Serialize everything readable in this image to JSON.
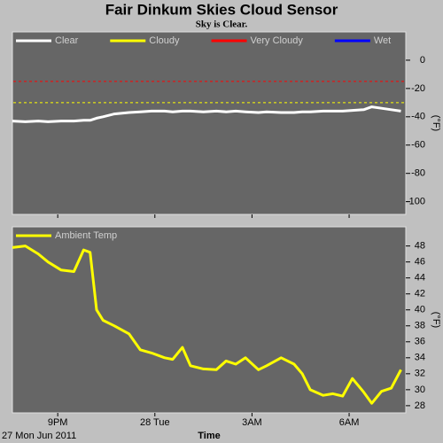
{
  "chart_data": [
    {
      "type": "line",
      "title": "Fair Dinkum Skies Cloud Sensor",
      "subtitle": "Sky is Clear.",
      "ylabel": "(°F)",
      "x": [
        19.6,
        20.0,
        20.4,
        20.7,
        21.1,
        21.5,
        21.8,
        22.0,
        22.2,
        22.4,
        22.75,
        23.2,
        23.55,
        23.9,
        24.3,
        24.55,
        24.85,
        25.1,
        25.5,
        25.9,
        26.2,
        26.5,
        26.8,
        27.2,
        27.45,
        27.9,
        28.3,
        28.55,
        28.8,
        29.2,
        29.5,
        29.8,
        30.1,
        30.45,
        30.7,
        31.0,
        31.3,
        31.6
      ],
      "series": [
        {
          "name": "Clear",
          "color": "#ffffff",
          "values": [
            -43,
            -43.5,
            -43,
            -43.5,
            -43,
            -43,
            -42.5,
            -42.5,
            -41,
            -40,
            -38,
            -37,
            -36.5,
            -36,
            -36,
            -36.5,
            -36,
            -36,
            -36.5,
            -36,
            -36.5,
            -36,
            -36.5,
            -37,
            -36.5,
            -37,
            -37,
            -36.5,
            -36.5,
            -36,
            -36,
            -36,
            -35.5,
            -35,
            -33,
            -34,
            -35,
            -36
          ]
        }
      ],
      "thresholds": [
        {
          "name": "Cloudy",
          "color": "#ffff00",
          "value": -30
        },
        {
          "name": "Very Cloudy",
          "color": "#ff0000",
          "value": -15
        },
        {
          "name": "Wet",
          "color": "#0000ff"
        }
      ],
      "xlim": [
        19.6,
        31.75
      ],
      "xticks": [
        {
          "value": 21,
          "label": "9PM"
        },
        {
          "value": 24,
          "label": "28 Tue"
        },
        {
          "value": 27,
          "label": "3AM"
        },
        {
          "value": 30,
          "label": "6AM"
        }
      ],
      "ylim": [
        -109,
        20
      ],
      "yticks": [
        0,
        -20,
        -40,
        -60,
        -80,
        -100
      ]
    },
    {
      "type": "line",
      "ylabel": "(°F)",
      "xlabel": "Time",
      "x_start_label": "27 Mon Jun 2011",
      "x": [
        19.6,
        20.0,
        20.4,
        20.7,
        21.1,
        21.5,
        21.8,
        22.0,
        22.2,
        22.4,
        22.75,
        23.2,
        23.55,
        23.9,
        24.3,
        24.55,
        24.85,
        25.1,
        25.5,
        25.9,
        26.2,
        26.5,
        26.8,
        27.2,
        27.45,
        27.9,
        28.3,
        28.55,
        28.8,
        29.2,
        29.5,
        29.8,
        30.1,
        30.45,
        30.7,
        31.0,
        31.3,
        31.6
      ],
      "series": [
        {
          "name": "Ambient Temp",
          "color": "#ffff00",
          "values": [
            47.8,
            48,
            47,
            46,
            45,
            44.8,
            47.5,
            47.2,
            40,
            38.7,
            38,
            37,
            35,
            34.6,
            34,
            33.8,
            35.3,
            33,
            32.6,
            32.5,
            33.6,
            33.2,
            34,
            32.5,
            33,
            34,
            33.2,
            32,
            30,
            29.3,
            29.5,
            29.2,
            31.4,
            29.7,
            28.3,
            29.8,
            30.2,
            32.5
          ]
        }
      ],
      "xlim": [
        19.6,
        31.75
      ],
      "xticks": [
        {
          "value": 21,
          "label": "9PM"
        },
        {
          "value": 24,
          "label": "28 Tue"
        },
        {
          "value": 27,
          "label": "3AM"
        },
        {
          "value": 30,
          "label": "6AM"
        }
      ],
      "ylim": [
        27.1,
        50.4
      ],
      "yticks": [
        28,
        30,
        32,
        34,
        36,
        38,
        40,
        42,
        44,
        46,
        48
      ]
    }
  ]
}
